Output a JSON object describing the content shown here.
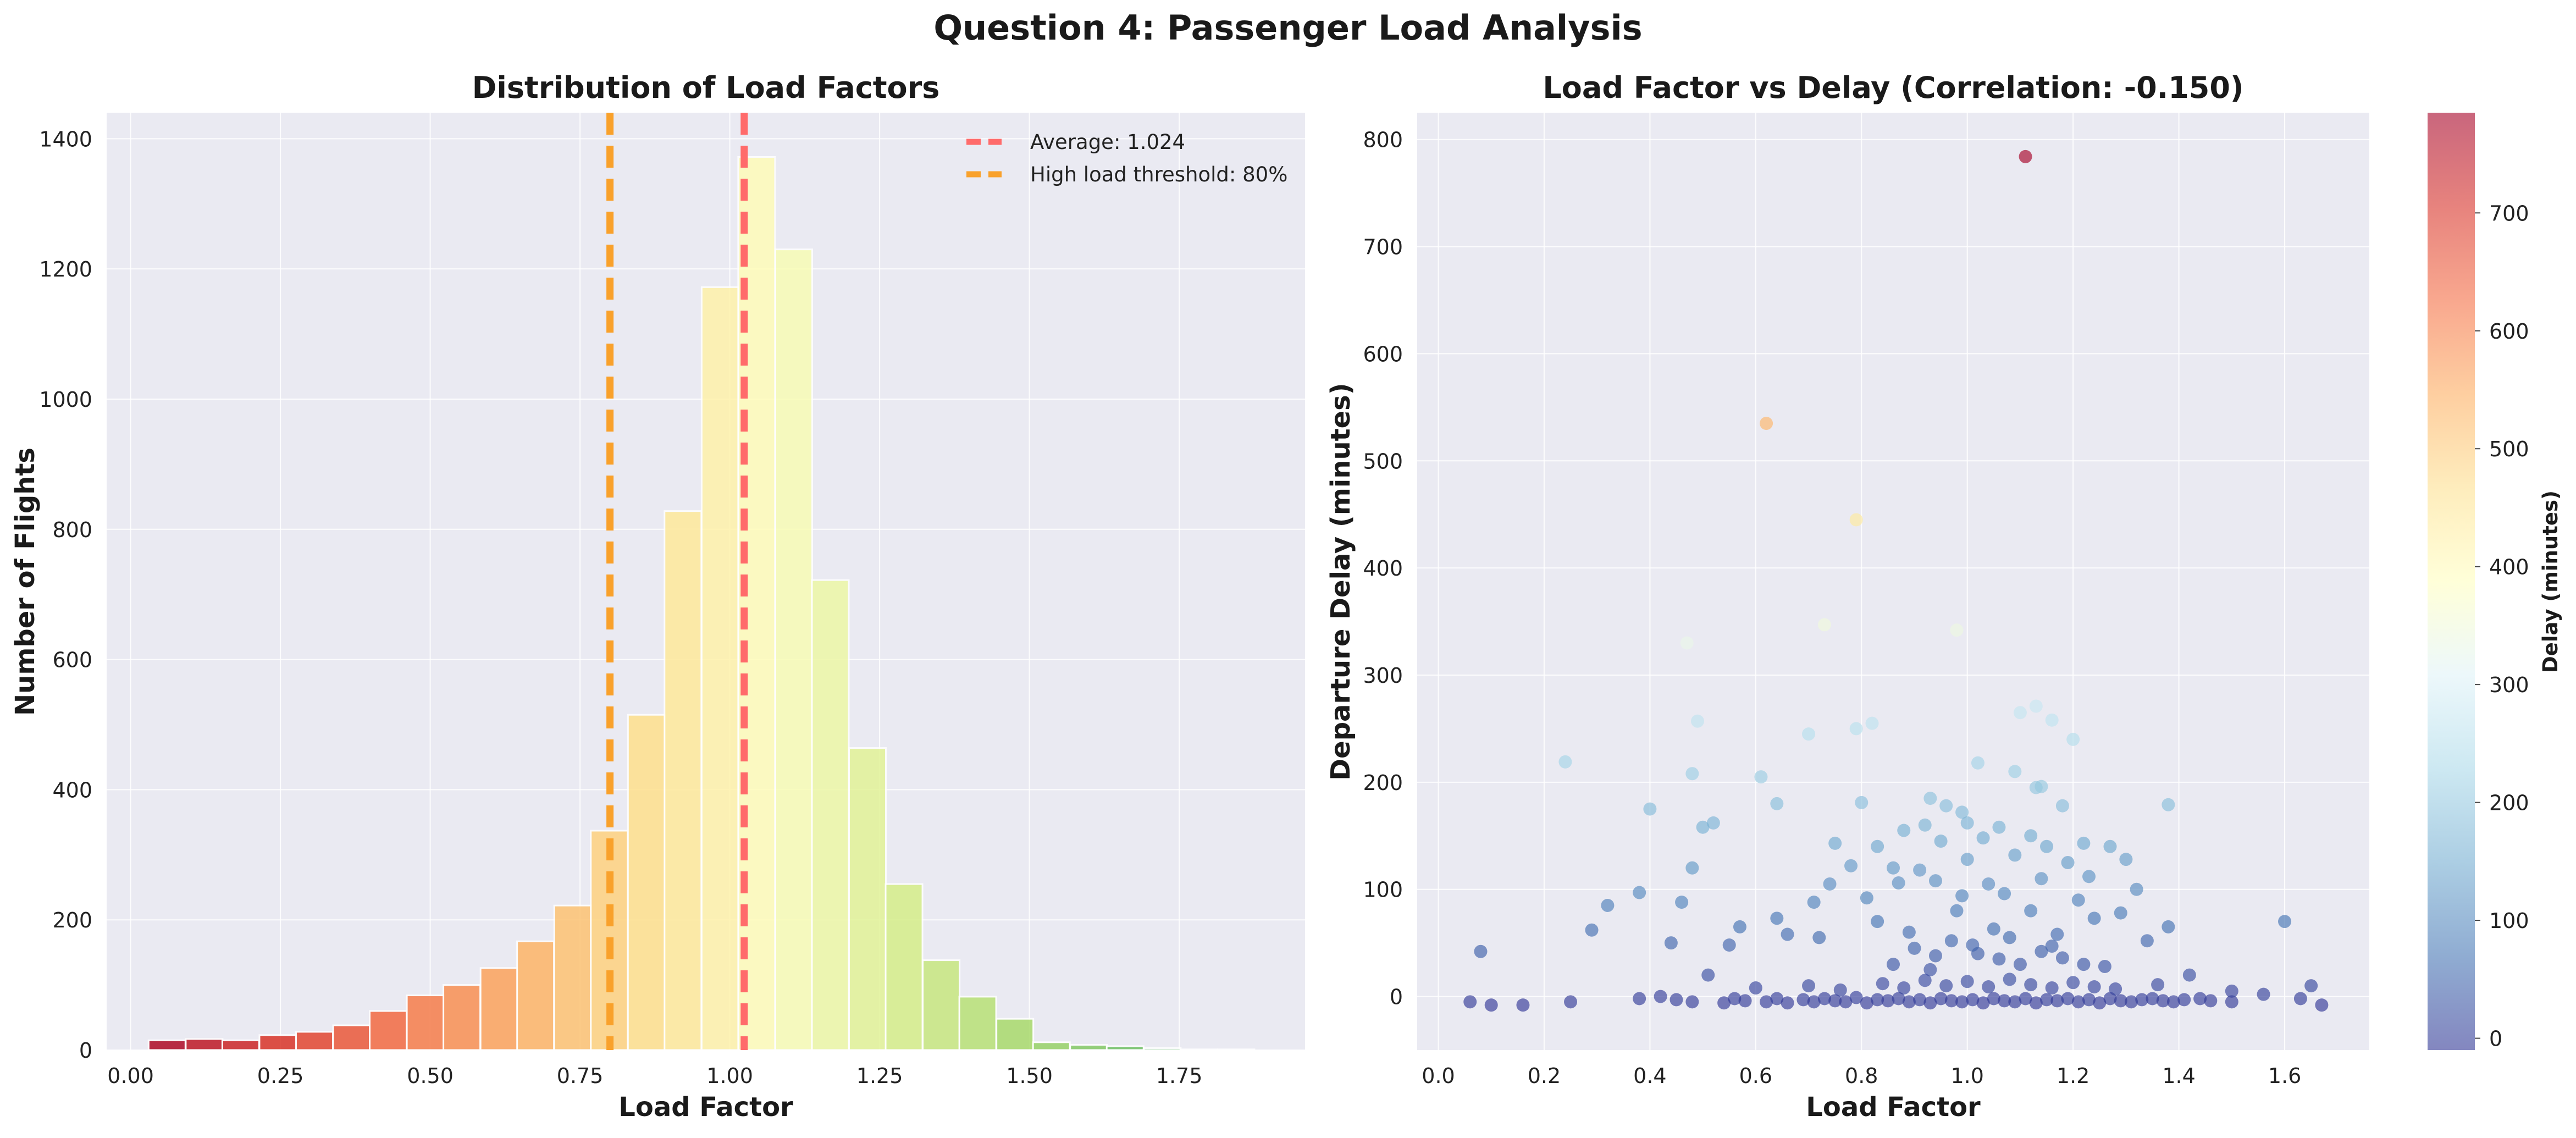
{
  "figure": {
    "suptitle": "Question 4: Passenger Load Analysis"
  },
  "chart_data": [
    {
      "type": "bar",
      "title": "Distribution of Load Factors",
      "xlabel": "Load Factor",
      "ylabel": "Number of Flights",
      "xlim": [
        -0.04,
        1.96
      ],
      "ylim": [
        0,
        1440
      ],
      "xticks": [
        "0.00",
        "0.25",
        "0.50",
        "0.75",
        "1.00",
        "1.25",
        "1.50",
        "1.75"
      ],
      "yticks": [
        "0",
        "200",
        "400",
        "600",
        "800",
        "1000",
        "1200",
        "1400"
      ],
      "grid": true,
      "legend_placement": "upper-right",
      "colormap": "RdYlGn",
      "bin_width": 0.0615,
      "bins": [
        {
          "left": 0.03,
          "count": 15
        },
        {
          "left": 0.092,
          "count": 17
        },
        {
          "left": 0.153,
          "count": 15
        },
        {
          "left": 0.215,
          "count": 23
        },
        {
          "left": 0.276,
          "count": 28
        },
        {
          "left": 0.338,
          "count": 38
        },
        {
          "left": 0.399,
          "count": 60
        },
        {
          "left": 0.461,
          "count": 84
        },
        {
          "left": 0.522,
          "count": 100
        },
        {
          "left": 0.584,
          "count": 126
        },
        {
          "left": 0.645,
          "count": 167
        },
        {
          "left": 0.707,
          "count": 222
        },
        {
          "left": 0.768,
          "count": 337
        },
        {
          "left": 0.83,
          "count": 515
        },
        {
          "left": 0.891,
          "count": 828
        },
        {
          "left": 0.953,
          "count": 1172
        },
        {
          "left": 1.014,
          "count": 1372
        },
        {
          "left": 1.076,
          "count": 1230
        },
        {
          "left": 1.137,
          "count": 722
        },
        {
          "left": 1.199,
          "count": 464
        },
        {
          "left": 1.26,
          "count": 255
        },
        {
          "left": 1.322,
          "count": 138
        },
        {
          "left": 1.383,
          "count": 82
        },
        {
          "left": 1.445,
          "count": 48
        },
        {
          "left": 1.506,
          "count": 12
        },
        {
          "left": 1.568,
          "count": 8
        },
        {
          "left": 1.629,
          "count": 6
        },
        {
          "left": 1.691,
          "count": 3
        },
        {
          "left": 1.752,
          "count": 1
        },
        {
          "left": 1.814,
          "count": 1
        }
      ],
      "reference_lines": [
        {
          "x": 1.024,
          "label": "Average: 1.024",
          "color": "#ff6b6b"
        },
        {
          "x": 0.8,
          "label": "High load threshold: 80%",
          "color": "#f9a12b"
        }
      ]
    },
    {
      "type": "scatter",
      "title": "Load Factor vs Delay (Correlation: -0.150)",
      "xlabel": "Load Factor",
      "ylabel": "Departure Delay (minutes)",
      "xlim": [
        -0.04,
        1.76
      ],
      "ylim": [
        -50,
        825
      ],
      "xticks": [
        "0.0",
        "0.2",
        "0.4",
        "0.6",
        "0.8",
        "1.0",
        "1.2",
        "1.4",
        "1.6"
      ],
      "yticks": [
        "0",
        "100",
        "200",
        "300",
        "400",
        "500",
        "600",
        "700",
        "800"
      ],
      "grid": true,
      "colormap": "RdYlBu_r",
      "colorbar": {
        "label": "Delay (minutes)",
        "range": [
          -10,
          785
        ],
        "ticks": [
          "0",
          "100",
          "200",
          "300",
          "400",
          "500",
          "600",
          "700"
        ]
      },
      "points": [
        [
          1.11,
          784
        ],
        [
          0.62,
          535
        ],
        [
          0.79,
          445
        ],
        [
          0.73,
          347
        ],
        [
          0.98,
          342
        ],
        [
          0.47,
          330
        ],
        [
          1.13,
          271
        ],
        [
          1.1,
          265
        ],
        [
          1.16,
          258
        ],
        [
          0.49,
          257
        ],
        [
          0.82,
          255
        ],
        [
          0.79,
          250
        ],
        [
          0.7,
          245
        ],
        [
          1.2,
          240
        ],
        [
          0.24,
          219
        ],
        [
          1.02,
          218
        ],
        [
          1.09,
          210
        ],
        [
          0.48,
          208
        ],
        [
          0.61,
          205
        ],
        [
          1.13,
          195
        ],
        [
          1.14,
          196
        ],
        [
          0.93,
          185
        ],
        [
          0.96,
          178
        ],
        [
          0.99,
          172
        ],
        [
          0.4,
          175
        ],
        [
          0.64,
          180
        ],
        [
          0.8,
          181
        ],
        [
          1.18,
          178
        ],
        [
          1.38,
          179
        ],
        [
          0.52,
          162
        ],
        [
          0.5,
          158
        ],
        [
          0.88,
          155
        ],
        [
          0.92,
          160
        ],
        [
          1.0,
          162
        ],
        [
          1.06,
          158
        ],
        [
          1.12,
          150
        ],
        [
          0.75,
          143
        ],
        [
          0.83,
          140
        ],
        [
          0.95,
          145
        ],
        [
          1.03,
          148
        ],
        [
          1.15,
          140
        ],
        [
          1.22,
          143
        ],
        [
          1.27,
          140
        ],
        [
          0.48,
          120
        ],
        [
          0.78,
          122
        ],
        [
          0.86,
          120
        ],
        [
          0.91,
          118
        ],
        [
          1.0,
          128
        ],
        [
          1.09,
          132
        ],
        [
          1.19,
          125
        ],
        [
          1.3,
          128
        ],
        [
          0.38,
          97
        ],
        [
          0.74,
          105
        ],
        [
          0.87,
          106
        ],
        [
          0.94,
          108
        ],
        [
          1.04,
          105
        ],
        [
          1.14,
          110
        ],
        [
          1.23,
          112
        ],
        [
          1.32,
          100
        ],
        [
          0.32,
          85
        ],
        [
          0.46,
          88
        ],
        [
          0.71,
          88
        ],
        [
          0.81,
          92
        ],
        [
          0.99,
          94
        ],
        [
          1.07,
          96
        ],
        [
          1.21,
          90
        ],
        [
          1.29,
          78
        ],
        [
          0.29,
          62
        ],
        [
          0.57,
          65
        ],
        [
          0.64,
          73
        ],
        [
          0.83,
          70
        ],
        [
          0.98,
          80
        ],
        [
          1.12,
          80
        ],
        [
          1.24,
          73
        ],
        [
          1.38,
          65
        ],
        [
          1.6,
          70
        ],
        [
          0.08,
          42
        ],
        [
          0.44,
          50
        ],
        [
          0.55,
          48
        ],
        [
          0.66,
          58
        ],
        [
          0.72,
          55
        ],
        [
          0.89,
          60
        ],
        [
          1.05,
          63
        ],
        [
          1.17,
          58
        ],
        [
          1.34,
          52
        ],
        [
          0.51,
          20
        ],
        [
          0.93,
          25
        ],
        [
          1.1,
          30
        ],
        [
          1.26,
          28
        ],
        [
          1.42,
          20
        ],
        [
          0.06,
          -5
        ],
        [
          0.1,
          -8
        ],
        [
          0.16,
          -8
        ],
        [
          0.25,
          -5
        ],
        [
          0.38,
          -2
        ],
        [
          0.42,
          0
        ],
        [
          0.45,
          -3
        ],
        [
          0.48,
          -5
        ],
        [
          0.54,
          -6
        ],
        [
          0.56,
          -2
        ],
        [
          0.58,
          -4
        ],
        [
          0.62,
          -5
        ],
        [
          0.64,
          -2
        ],
        [
          0.66,
          -6
        ],
        [
          0.69,
          -3
        ],
        [
          0.71,
          -5
        ],
        [
          0.73,
          -2
        ],
        [
          0.75,
          -4
        ],
        [
          0.77,
          -5
        ],
        [
          0.79,
          -1
        ],
        [
          0.81,
          -6
        ],
        [
          0.83,
          -3
        ],
        [
          0.85,
          -4
        ],
        [
          0.87,
          -2
        ],
        [
          0.89,
          -5
        ],
        [
          0.91,
          -3
        ],
        [
          0.93,
          -6
        ],
        [
          0.95,
          -2
        ],
        [
          0.97,
          -4
        ],
        [
          0.99,
          -5
        ],
        [
          1.01,
          -3
        ],
        [
          1.03,
          -6
        ],
        [
          1.05,
          -2
        ],
        [
          1.07,
          -4
        ],
        [
          1.09,
          -5
        ],
        [
          1.11,
          -2
        ],
        [
          1.13,
          -6
        ],
        [
          1.15,
          -3
        ],
        [
          1.17,
          -4
        ],
        [
          1.19,
          -2
        ],
        [
          1.21,
          -5
        ],
        [
          1.23,
          -3
        ],
        [
          1.25,
          -6
        ],
        [
          1.27,
          -2
        ],
        [
          1.29,
          -4
        ],
        [
          1.31,
          -5
        ],
        [
          1.33,
          -3
        ],
        [
          1.35,
          -2
        ],
        [
          1.37,
          -4
        ],
        [
          1.39,
          -5
        ],
        [
          1.41,
          -3
        ],
        [
          1.44,
          -2
        ],
        [
          1.46,
          -4
        ],
        [
          1.5,
          -5
        ],
        [
          1.5,
          5
        ],
        [
          1.56,
          2
        ],
        [
          1.63,
          -2
        ],
        [
          1.65,
          10
        ],
        [
          1.67,
          -8
        ],
        [
          0.6,
          8
        ],
        [
          0.7,
          10
        ],
        [
          0.76,
          6
        ],
        [
          0.84,
          12
        ],
        [
          0.88,
          8
        ],
        [
          0.92,
          15
        ],
        [
          0.96,
          10
        ],
        [
          1.0,
          14
        ],
        [
          1.04,
          9
        ],
        [
          1.08,
          16
        ],
        [
          1.12,
          11
        ],
        [
          1.16,
          8
        ],
        [
          1.2,
          13
        ],
        [
          1.24,
          9
        ],
        [
          1.28,
          7
        ],
        [
          1.36,
          11
        ],
        [
          0.86,
          30
        ],
        [
          0.94,
          38
        ],
        [
          1.02,
          40
        ],
        [
          1.06,
          35
        ],
        [
          1.14,
          42
        ],
        [
          1.18,
          36
        ],
        [
          1.22,
          30
        ],
        [
          0.9,
          45
        ],
        [
          0.97,
          52
        ],
        [
          1.01,
          48
        ],
        [
          1.08,
          55
        ],
        [
          1.16,
          47
        ]
      ]
    }
  ]
}
